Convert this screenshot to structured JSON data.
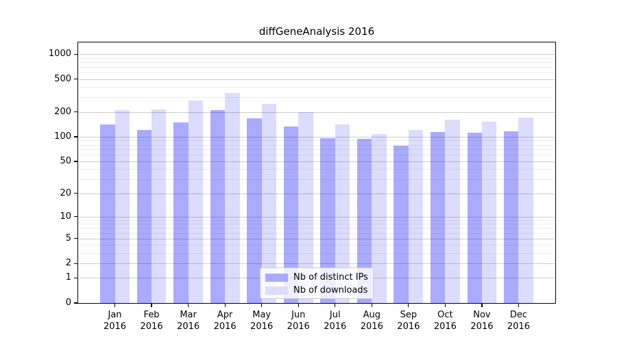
{
  "chart_data": {
    "type": "bar",
    "title": "diffGeneAnalysis 2016",
    "categories": [
      "Jan",
      "Feb",
      "Mar",
      "Apr",
      "May",
      "Jun",
      "Jul",
      "Aug",
      "Sep",
      "Oct",
      "Nov",
      "Dec"
    ],
    "x_tick_second_line": "2016",
    "series": [
      {
        "name": "Nb of distinct IPs",
        "color": "#aaaaff",
        "values": [
          141,
          120,
          150,
          210,
          168,
          133,
          97,
          94,
          78,
          115,
          113,
          116
        ]
      },
      {
        "name": "Nb of downloads",
        "color": "#dcdcff",
        "values": [
          212,
          214,
          277,
          340,
          252,
          200,
          142,
          108,
          120,
          160,
          151,
          172
        ]
      }
    ],
    "yscale": "log1p",
    "ylim": [
      0,
      1385
    ],
    "y_major_ticks": [
      0,
      1,
      2,
      5,
      10,
      20,
      50,
      100,
      200,
      500,
      1000
    ],
    "y_minor_ticks": [
      3,
      4,
      6,
      7,
      8,
      9,
      30,
      40,
      60,
      70,
      80,
      90,
      300,
      400,
      600,
      700,
      800,
      900
    ],
    "grid": true,
    "legend_position": "lower-center"
  },
  "colors": {
    "background": "#ffffff",
    "bar_distinct_ips": "#aaaaff",
    "bar_downloads": "#dcdcff",
    "grid_major": "#cccccc",
    "grid_minor": "#ededed",
    "spine": "#000000",
    "text": "#000000",
    "legend_border": "#cccccc",
    "legend_background": "#ffffff"
  }
}
